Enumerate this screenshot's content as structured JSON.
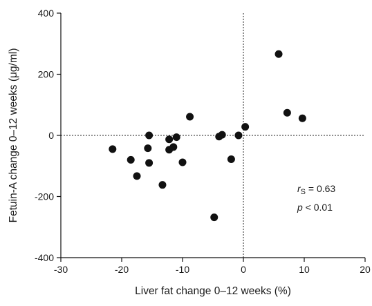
{
  "chart_data": {
    "type": "scatter",
    "xlabel": "Liver fat change 0–12 weeks (%)",
    "ylabel": "Fetuin-A change 0–12 weeks (μg/ml)",
    "xlim": [
      -30,
      20
    ],
    "ylim": [
      -400,
      400
    ],
    "xticks": [
      -30,
      -20,
      -10,
      0,
      10,
      20
    ],
    "yticks": [
      -400,
      -200,
      0,
      200,
      400
    ],
    "xtick_labels": [
      "-30",
      "-20",
      "-10",
      "0",
      "10",
      "20"
    ],
    "ytick_labels": [
      "-400",
      "-200",
      "0",
      "200",
      "400"
    ],
    "reference_lines": {
      "x": 0,
      "y": 0,
      "style": "dotted"
    },
    "grid": false,
    "marker_color": "#111111",
    "points": [
      {
        "x": -21.5,
        "y": -45
      },
      {
        "x": -18.5,
        "y": -80
      },
      {
        "x": -17.5,
        "y": -133
      },
      {
        "x": -15.5,
        "y": 0
      },
      {
        "x": -15.7,
        "y": -42
      },
      {
        "x": -15.5,
        "y": -90
      },
      {
        "x": -13.3,
        "y": -162
      },
      {
        "x": -12.2,
        "y": -13
      },
      {
        "x": -12.2,
        "y": -47
      },
      {
        "x": -11.5,
        "y": -38
      },
      {
        "x": -11.0,
        "y": -6
      },
      {
        "x": -10.0,
        "y": -88
      },
      {
        "x": -8.8,
        "y": 61
      },
      {
        "x": -4.8,
        "y": -268
      },
      {
        "x": -4.0,
        "y": -4
      },
      {
        "x": -3.5,
        "y": 2
      },
      {
        "x": -2.0,
        "y": -78
      },
      {
        "x": -0.8,
        "y": 0
      },
      {
        "x": 0.3,
        "y": 28
      },
      {
        "x": 5.8,
        "y": 266
      },
      {
        "x": 7.2,
        "y": 74
      },
      {
        "x": 9.7,
        "y": 56
      }
    ],
    "annotation": {
      "r_symbol": "r",
      "r_subscript": "S",
      "r_value": " = 0.63",
      "p_symbol": "p",
      "p_value": " < 0.01"
    }
  }
}
